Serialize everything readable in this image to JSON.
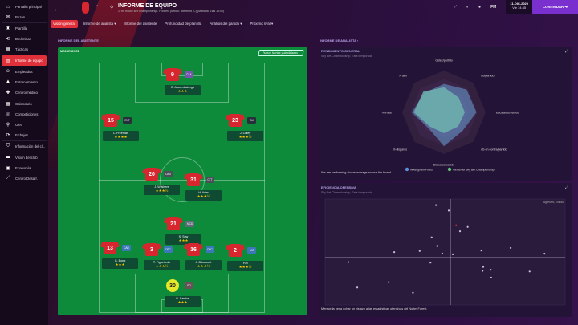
{
  "sidebar": {
    "items": [
      {
        "label": "Pantalla principal",
        "icon": "home-icon",
        "glyph": "⌂"
      },
      {
        "label": "Buzón",
        "icon": "inbox-icon",
        "glyph": "✉"
      },
      {
        "label": "Plantilla",
        "icon": "shirt-icon",
        "glyph": "♜"
      },
      {
        "label": "Dinámicas",
        "icon": "dynamics-icon",
        "glyph": "⟲"
      },
      {
        "label": "Tácticas",
        "icon": "tactics-icon",
        "glyph": "▦"
      },
      {
        "label": "Informe de equipo",
        "icon": "report-icon",
        "glyph": "▤"
      },
      {
        "label": "Empleados",
        "icon": "staff-icon",
        "glyph": "☺"
      },
      {
        "label": "Entrenamiento",
        "icon": "training-icon",
        "glyph": "▲"
      },
      {
        "label": "Centro médico",
        "icon": "medical-icon",
        "glyph": "✚"
      },
      {
        "label": "Calendario",
        "icon": "calendar-icon",
        "glyph": "▦"
      },
      {
        "label": "Competiciones",
        "icon": "trophy-icon",
        "glyph": "♕"
      },
      {
        "label": "Ojeo",
        "icon": "scouting-icon",
        "glyph": "⚲"
      },
      {
        "label": "Fichajes",
        "icon": "transfers-icon",
        "glyph": "⟳"
      },
      {
        "label": "Información del cl...",
        "icon": "club-info-icon",
        "glyph": "⛉"
      },
      {
        "label": "Visión del club",
        "icon": "club-vision-icon",
        "glyph": "▬"
      },
      {
        "label": "Economía",
        "icon": "finance-icon",
        "glyph": "▣"
      },
      {
        "label": "Centro Desarr.",
        "icon": "development-icon",
        "glyph": "⟋"
      }
    ],
    "active": 5
  },
  "header": {
    "title": "INFORME DE EQUIPO",
    "subtitle": "1º en el Sky Bet Championship - Próximo partido: Brentford (C) (Mañana a las 15:00)",
    "back": "←",
    "forward": "→"
  },
  "tabs": [
    {
      "label": "Visión general"
    },
    {
      "label": "Informe de analista ▾"
    },
    {
      "label": "Informe del asistente"
    },
    {
      "label": "Profundidad de plantilla"
    },
    {
      "label": "Análisis del partido ▾"
    },
    {
      "label": "Próximo rival ▾"
    }
  ],
  "topbar": {
    "fm": "FM",
    "date": "11-DIC-2020",
    "time": "Vie 14:45",
    "continue": "CONTINUAR ➜"
  },
  "assistant": {
    "label": "INFORME DEL ASISTENTE ›",
    "best_xi": "MEJOR ONCE",
    "strengths": "Puntos fuertes y debilidades ›",
    "players": [
      {
        "num": "9",
        "name": "B. Assombalonga",
        "role": "DLA",
        "stars": 3,
        "role_color": "#7a55b0"
      },
      {
        "num": "15",
        "name": "L. Freeman",
        "role": "EXT",
        "stars": 4,
        "role_color": "#26303a"
      },
      {
        "num": "23",
        "name": "J. Lolley",
        "role": "DU",
        "stars": 3.5,
        "role_color": "#26303a"
      },
      {
        "num": "20",
        "name": "J. Wilshere",
        "role": "OAD",
        "stars": 3.5,
        "role_color": "#4a5058"
      },
      {
        "num": "31",
        "name": "H. Arter",
        "role": "CTT",
        "stars": 3.5,
        "role_color": "#4a5058"
      },
      {
        "num": "21",
        "name": "S. Sow",
        "role": "MCD",
        "stars": 3,
        "role_color": "#5f6a78"
      },
      {
        "num": "13",
        "name": "G. Bong",
        "role": "CAR",
        "stars": 3,
        "role_color": "#3a78b8"
      },
      {
        "num": "3",
        "name": "T. Figueiredo",
        "role": "DFC",
        "stars": 3.5,
        "role_color": "#3a78b8"
      },
      {
        "num": "16",
        "name": "J. Bibusović",
        "role": "DFC",
        "stars": 3.5,
        "role_color": "#3a78b8"
      },
      {
        "num": "2",
        "name": "Yuri",
        "role": "LAT",
        "stars": 3.5,
        "role_color": "#3a78b8"
      },
      {
        "num": "30",
        "name": "B. Samba",
        "role": "PO",
        "stars": 3,
        "role_color": "#6a5058",
        "gk": true
      }
    ]
  },
  "analyst": {
    "label": "INFORME DE ANALISTA ›"
  },
  "performance": {
    "title": "RENDIMIENTO GENERAL",
    "subtitle": "Sky Bet Championship, Esta temporada",
    "footer": "We are performing above average across the board."
  },
  "efficiency": {
    "title": "EFICIENCIA OFENSIVA",
    "subtitle": "Sky Bet Championship, Esta temporada",
    "corner": "Agresivo, Sólido",
    "footer": "Merece la pena echar un vistazo a las estadísticas ofensivas del Nottm Forest."
  },
  "chart_data": [
    {
      "type": "radar",
      "axes": [
        "Goles/partido",
        "xG/partido",
        "Encajados/partido",
        "xG en contra/partido",
        "Disparos/partido",
        "% disparos",
        "% Pase",
        "% aérl"
      ],
      "range": [
        0,
        100
      ],
      "series": [
        {
          "name": "Nottingham Forest",
          "color": "#5b8fd6",
          "values": [
            68,
            77,
            78,
            63,
            81,
            53,
            77,
            66
          ]
        },
        {
          "name": "Media del Sky Bet Championship",
          "color": "#5fc77a",
          "values": [
            60,
            50,
            50,
            48,
            50,
            48,
            72,
            70
          ]
        }
      ],
      "legend": "bottom"
    },
    {
      "type": "scatter",
      "xlim": [
        0,
        100
      ],
      "ylim": [
        0,
        100
      ],
      "cross": [
        52.2,
        44.8
      ],
      "highlight_color": "#e0303a",
      "point_color": "#c9bdd8",
      "points": [
        [
          46.2,
          94.2
        ],
        [
          51.5,
          89.1
        ],
        [
          54.6,
          75.2,
          "highlight"
        ],
        [
          59.4,
          73.7
        ],
        [
          56.2,
          69.6
        ],
        [
          44.4,
          63.8
        ],
        [
          46.7,
          55.7
        ],
        [
          28.8,
          49.9
        ],
        [
          39.4,
          50.9
        ],
        [
          48.8,
          48.6
        ],
        [
          53.2,
          47.8
        ],
        [
          65.1,
          51.4
        ],
        [
          77.3,
          53.9
        ],
        [
          91.4,
          48.4
        ],
        [
          9.7,
          40.5
        ],
        [
          43.9,
          40.0
        ],
        [
          65.9,
          35.9
        ],
        [
          65.6,
          32.2
        ],
        [
          69.0,
          33.2
        ],
        [
          85.2,
          31.6
        ],
        [
          69.2,
          25.8
        ],
        [
          26.5,
          21.5
        ],
        [
          13.4,
          16.5
        ],
        [
          36.6,
          11.6
        ]
      ]
    }
  ]
}
